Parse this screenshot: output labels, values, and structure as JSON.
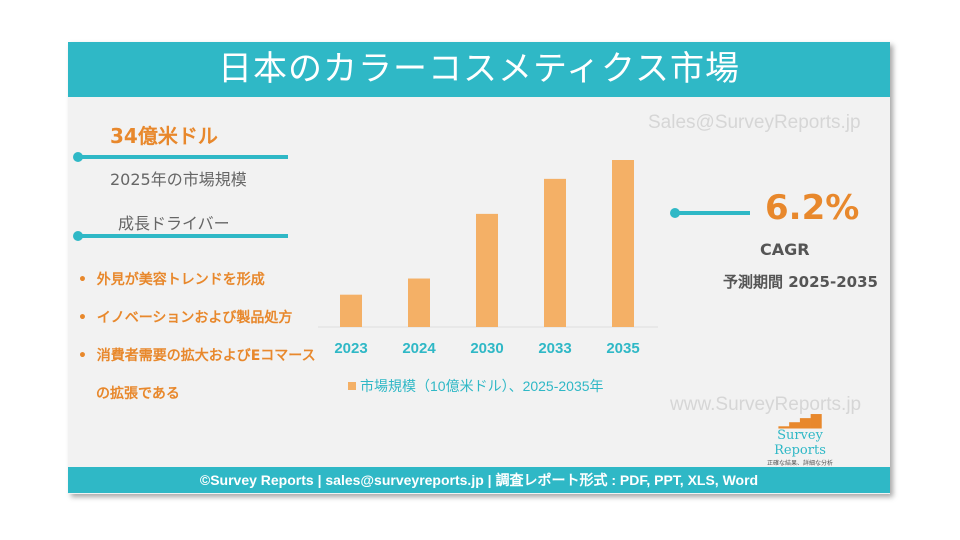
{
  "title": "日本のカラーコスメティクス市場",
  "market_size": {
    "value": "34億米ドル",
    "label": "2025年の市場規模"
  },
  "drivers": {
    "heading": "成長ドライバー",
    "items": [
      "外見が美容トレンドを形成",
      "イノベーションおよび製品処方",
      "消費者需要の拡大およびEコマース",
      "の拡張である"
    ]
  },
  "cagr": {
    "value": "6.2%",
    "label": "CAGR",
    "period": "予測期間 2025-2035"
  },
  "watermarks": {
    "top": "Sales@SurveyReports.jp",
    "bottom": "www.SurveyReports.jp"
  },
  "logo": {
    "name": "Survey Reports",
    "tagline": "正確な結果、詳細な分析"
  },
  "footer": "©Survey Reports | sales@surveyreports.jp |  調査レポート形式 : PDF, PPT, XLS, Word",
  "colors": {
    "teal": "#2fb8c6",
    "orange": "#f4b066",
    "accent": "#e8882c"
  },
  "chart_data": {
    "type": "bar",
    "categories": [
      "2023",
      "2024",
      "2030",
      "2033",
      "2035"
    ],
    "series": [
      {
        "name": "市場規模（10億米ドル）、2025-2035年",
        "values": [
          1.2,
          1.8,
          4.2,
          5.5,
          6.2
        ]
      }
    ],
    "legend": "bottom",
    "grid": false
  }
}
